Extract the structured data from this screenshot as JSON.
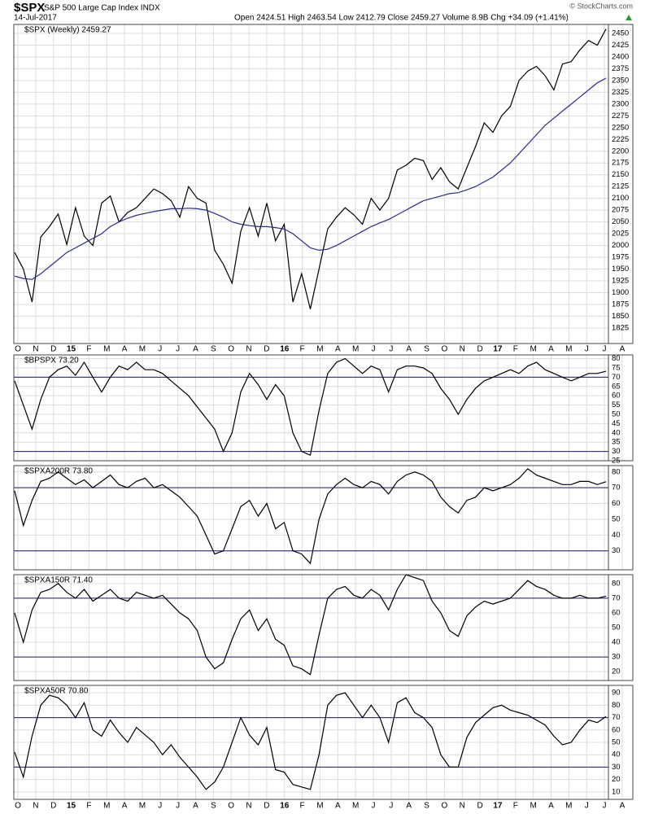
{
  "header": {
    "symbol": "$SPX",
    "name": "S&P 500 Large Cap Index INDX",
    "date": "14-Jul-2017",
    "quote": "Open 2424.51  High 2463.54  Low 2412.79  Close 2459.27  Volume 8.9B  Chg +34.09 (+1.41%)",
    "copyright": "© StockCharts.com"
  },
  "month_labels": [
    "O",
    "N",
    "D",
    "15",
    "F",
    "M",
    "A",
    "M",
    "J",
    "J",
    "A",
    "S",
    "O",
    "N",
    "D",
    "16",
    "F",
    "M",
    "A",
    "M",
    "J",
    "J",
    "A",
    "S",
    "O",
    "N",
    "D",
    "17",
    "F",
    "M",
    "A",
    "M",
    "J",
    "J",
    "A"
  ],
  "chart_data": [
    {
      "type": "line",
      "title": "$SPX (Weekly) 2459.27",
      "ylim": [
        1792,
        2469
      ],
      "grid": true,
      "yticks": [
        1825,
        1850,
        1875,
        1900,
        1925,
        1950,
        1975,
        2000,
        2025,
        2050,
        2075,
        2100,
        2125,
        2150,
        2175,
        2200,
        2225,
        2250,
        2275,
        2300,
        2325,
        2350,
        2375,
        2400,
        2425,
        2450
      ],
      "series": [
        {
          "color": "#000000",
          "values": [
            1985,
            1950,
            1880,
            2018,
            2040,
            2067,
            2002,
            2080,
            2020,
            2000,
            2090,
            2105,
            2050,
            2070,
            2080,
            2100,
            2120,
            2110,
            2095,
            2060,
            2125,
            2100,
            2090,
            1990,
            1960,
            1920,
            2030,
            2080,
            2020,
            2090,
            2010,
            2045,
            1880,
            1940,
            1865,
            1950,
            2035,
            2060,
            2080,
            2065,
            2045,
            2100,
            2075,
            2100,
            2160,
            2170,
            2185,
            2180,
            2140,
            2165,
            2135,
            2120,
            2165,
            2210,
            2260,
            2240,
            2275,
            2295,
            2350,
            2370,
            2380,
            2360,
            2330,
            2385,
            2390,
            2415,
            2435,
            2425,
            2459.27
          ]
        },
        {
          "color": "#2b2b8f",
          "values": [
            1935,
            1930,
            1928,
            1940,
            1955,
            1970,
            1985,
            1995,
            2005,
            2015,
            2025,
            2040,
            2050,
            2058,
            2064,
            2068,
            2072,
            2075,
            2078,
            2078,
            2079,
            2078,
            2075,
            2068,
            2060,
            2050,
            2045,
            2042,
            2040,
            2040,
            2038,
            2035,
            2025,
            2010,
            1995,
            1990,
            1992,
            2000,
            2010,
            2020,
            2030,
            2040,
            2048,
            2055,
            2065,
            2075,
            2085,
            2095,
            2100,
            2105,
            2110,
            2112,
            2118,
            2125,
            2135,
            2145,
            2160,
            2175,
            2195,
            2215,
            2235,
            2255,
            2270,
            2285,
            2300,
            2315,
            2330,
            2345,
            2355
          ]
        }
      ]
    },
    {
      "type": "line",
      "title": "$BPSPX 73.20",
      "ylim": [
        25,
        82
      ],
      "grid": true,
      "ref_lines": [
        70,
        30
      ],
      "ref_color": "#1a1a6e",
      "yticks": [
        25,
        30,
        35,
        40,
        45,
        50,
        55,
        60,
        65,
        70,
        75,
        80
      ],
      "series": [
        {
          "color": "#000000",
          "values": [
            68,
            55,
            42,
            58,
            70,
            74,
            76,
            71,
            78,
            70,
            62,
            70,
            76,
            74,
            78,
            74,
            74,
            72,
            68,
            64,
            60,
            54,
            48,
            42,
            30,
            40,
            62,
            72,
            66,
            58,
            66,
            60,
            40,
            30,
            28,
            52,
            72,
            78,
            80,
            76,
            72,
            76,
            74,
            62,
            74,
            76,
            76,
            75,
            72,
            64,
            58,
            50,
            58,
            64,
            68,
            70,
            72,
            74,
            72,
            76,
            78,
            74,
            72,
            70,
            68,
            70,
            72,
            72,
            73.2
          ]
        }
      ]
    },
    {
      "type": "line",
      "title": "$SPXA200R 73.80",
      "ylim": [
        18,
        84
      ],
      "grid": true,
      "ref_lines": [
        70,
        30
      ],
      "ref_color": "#1a1a6e",
      "yticks": [
        30,
        40,
        50,
        60,
        70,
        80
      ],
      "series": [
        {
          "color": "#000000",
          "values": [
            68,
            46,
            62,
            74,
            76,
            80,
            76,
            72,
            75,
            70,
            74,
            78,
            72,
            70,
            74,
            76,
            70,
            72,
            68,
            64,
            58,
            52,
            40,
            28,
            30,
            44,
            58,
            62,
            52,
            60,
            44,
            48,
            30,
            28,
            22,
            50,
            66,
            72,
            76,
            72,
            70,
            74,
            72,
            66,
            74,
            78,
            80,
            78,
            74,
            64,
            58,
            54,
            62,
            64,
            70,
            68,
            70,
            72,
            76,
            82,
            78,
            76,
            74,
            72,
            72,
            74,
            74,
            72,
            73.8
          ]
        }
      ]
    },
    {
      "type": "line",
      "title": "$SPXA150R 71.40",
      "ylim": [
        14,
        86
      ],
      "grid": true,
      "ref_lines": [
        70,
        30
      ],
      "ref_color": "#1a1a6e",
      "yticks": [
        20,
        30,
        40,
        50,
        60,
        70,
        80
      ],
      "series": [
        {
          "color": "#000000",
          "values": [
            60,
            40,
            62,
            74,
            76,
            80,
            74,
            70,
            76,
            68,
            72,
            76,
            70,
            68,
            74,
            72,
            70,
            72,
            66,
            60,
            56,
            48,
            30,
            22,
            26,
            42,
            56,
            62,
            48,
            56,
            42,
            38,
            24,
            22,
            18,
            45,
            70,
            76,
            78,
            72,
            70,
            76,
            72,
            62,
            76,
            86,
            84,
            82,
            68,
            60,
            48,
            44,
            58,
            64,
            68,
            66,
            68,
            70,
            76,
            82,
            78,
            76,
            72,
            70,
            70,
            72,
            70,
            70,
            71.4
          ]
        }
      ]
    },
    {
      "type": "line",
      "title": "$SPXA50R 70.80",
      "ylim": [
        4,
        96
      ],
      "grid": true,
      "ref_lines": [
        70,
        30
      ],
      "ref_color": "#1a1a6e",
      "yticks": [
        10,
        20,
        30,
        40,
        50,
        60,
        70,
        80,
        90
      ],
      "series": [
        {
          "color": "#000000",
          "values": [
            42,
            22,
            55,
            80,
            88,
            86,
            80,
            70,
            82,
            60,
            55,
            68,
            58,
            50,
            62,
            56,
            50,
            40,
            48,
            38,
            30,
            22,
            12,
            18,
            30,
            50,
            70,
            56,
            48,
            62,
            28,
            26,
            16,
            14,
            12,
            40,
            80,
            88,
            90,
            80,
            70,
            80,
            70,
            50,
            82,
            86,
            74,
            70,
            62,
            40,
            30,
            30,
            54,
            66,
            72,
            78,
            80,
            76,
            74,
            72,
            68,
            64,
            55,
            48,
            50,
            60,
            68,
            66,
            70.8
          ]
        }
      ]
    }
  ]
}
